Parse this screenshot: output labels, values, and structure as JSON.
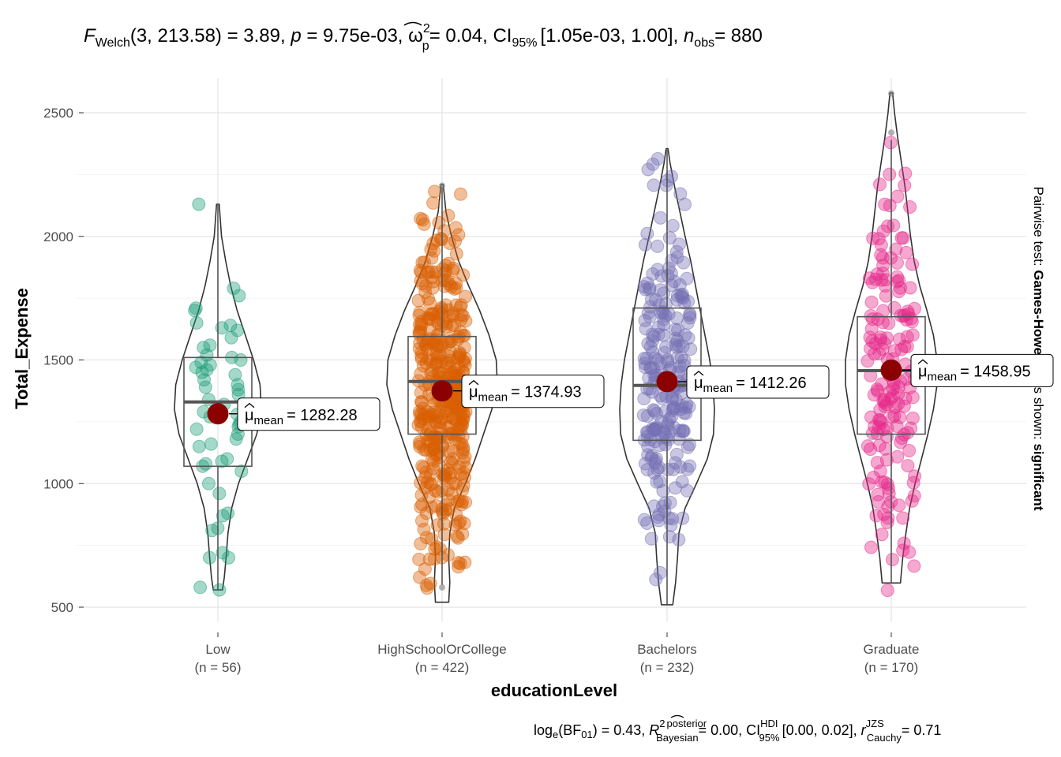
{
  "chart_data": {
    "type": "violin-box-scatter",
    "title": {
      "F_label": "F",
      "F_sub": "Welch",
      "df": "(3, 213.58)",
      "F_value": "= 3.89,",
      "p_label": "p",
      "p_value": "= 9.75e-03,",
      "effect_label": "ω",
      "effect_sup": "2",
      "effect_sub": "p",
      "effect_value": "= 0.04,",
      "ci_label": "CI",
      "ci_sub": "95%",
      "ci_value": "[1.05e-03, 1.00],",
      "n_label": "n",
      "n_sub": "obs",
      "n_value": "= 880"
    },
    "caption": {
      "bf_label": "log",
      "bf_sub": "e",
      "bf_paren": "(BF",
      "bf_paren_sub": "01",
      "bf_value": ") = 0.43,",
      "r2_label": "R",
      "r2_sup": "2",
      "r2_sup2": "posterior",
      "r2_sub": "Bayesian",
      "r2_value": "= 0.00,",
      "ci_label": "CI",
      "ci_sup": "HDI",
      "ci_sub": "95%",
      "ci_value": "[0.00, 0.02],",
      "r_label": "r",
      "r_sup": "JZS",
      "r_sub": "Cauchy",
      "r_value": "= 0.71"
    },
    "side_label": {
      "prefix": "Pairwise test: ",
      "test": "Games-Howell",
      "middle": " Bars shown: ",
      "shown": "significant"
    },
    "xlabel": "educationLevel",
    "ylabel": "Total_Expense",
    "ylim": [
      440,
      2640
    ],
    "yticks": [
      500,
      1000,
      1500,
      2000,
      2500
    ],
    "grid": true,
    "mean_label_prefix": "μ",
    "mean_label_sub": "mean",
    "groups": [
      {
        "name": "Low",
        "n_label": "(n = 56)",
        "n": 56,
        "color": "#1B9E77",
        "mean": 1282.28,
        "mean_text": "= 1282.28",
        "q1": 1070,
        "median": 1330,
        "q3": 1510,
        "whisker_low": 570,
        "whisker_high": 2130,
        "violin": [
          [
            570,
            0.1
          ],
          [
            620,
            0.14
          ],
          [
            700,
            0.18
          ],
          [
            800,
            0.22
          ],
          [
            900,
            0.3
          ],
          [
            1000,
            0.45
          ],
          [
            1100,
            0.65
          ],
          [
            1200,
            0.85
          ],
          [
            1300,
            0.95
          ],
          [
            1400,
            0.92
          ],
          [
            1500,
            0.78
          ],
          [
            1600,
            0.6
          ],
          [
            1700,
            0.42
          ],
          [
            1800,
            0.28
          ],
          [
            1900,
            0.17
          ],
          [
            2000,
            0.08
          ],
          [
            2130,
            0.03
          ]
        ],
        "points": [
          2130,
          1790,
          1760,
          1710,
          1700,
          1650,
          1640,
          1630,
          1620,
          1590,
          1560,
          1550,
          1520,
          1510,
          1500,
          1490,
          1480,
          1470,
          1460,
          1450,
          1440,
          1420,
          1400,
          1390,
          1380,
          1360,
          1340,
          1320,
          1300,
          1290,
          1280,
          1270,
          1250,
          1240,
          1230,
          1220,
          1200,
          1180,
          1160,
          1150,
          1100,
          1090,
          1080,
          1070,
          1050,
          1000,
          960,
          880,
          870,
          820,
          810,
          720,
          700,
          700,
          580,
          570
        ]
      },
      {
        "name": "HighSchoolOrCollege",
        "n_label": "(n = 422)",
        "n": 422,
        "color": "#D95F02",
        "mean": 1374.93,
        "mean_text": "= 1374.93",
        "q1": 1200,
        "median": 1413,
        "q3": 1595,
        "whisker_low": 590,
        "whisker_high": 2200,
        "violin": [
          [
            520,
            0.12
          ],
          [
            600,
            0.14
          ],
          [
            700,
            0.12
          ],
          [
            800,
            0.14
          ],
          [
            900,
            0.22
          ],
          [
            1000,
            0.42
          ],
          [
            1100,
            0.6
          ],
          [
            1200,
            0.75
          ],
          [
            1300,
            0.9
          ],
          [
            1400,
            1.0
          ],
          [
            1500,
            0.98
          ],
          [
            1600,
            0.85
          ],
          [
            1700,
            0.68
          ],
          [
            1800,
            0.48
          ],
          [
            1900,
            0.3
          ],
          [
            2000,
            0.17
          ],
          [
            2100,
            0.07
          ],
          [
            2210,
            0.02
          ]
        ],
        "outliers": [
          580,
          2205
        ]
      },
      {
        "name": "Bachelors",
        "n_label": "(n = 232)",
        "n": 232,
        "color": "#7570B3",
        "mean": 1412.26,
        "mean_text": "= 1412.26",
        "q1": 1175,
        "median": 1397,
        "q3": 1710,
        "whisker_low": 510,
        "whisker_high": 2350,
        "violin": [
          [
            510,
            0.12
          ],
          [
            600,
            0.18
          ],
          [
            700,
            0.22
          ],
          [
            800,
            0.25
          ],
          [
            900,
            0.38
          ],
          [
            1000,
            0.62
          ],
          [
            1100,
            0.85
          ],
          [
            1200,
            0.98
          ],
          [
            1300,
            1.0
          ],
          [
            1400,
            0.97
          ],
          [
            1500,
            0.9
          ],
          [
            1600,
            0.8
          ],
          [
            1700,
            0.7
          ],
          [
            1800,
            0.6
          ],
          [
            1900,
            0.5
          ],
          [
            2000,
            0.38
          ],
          [
            2100,
            0.27
          ],
          [
            2200,
            0.16
          ],
          [
            2300,
            0.06
          ],
          [
            2355,
            0.02
          ]
        ]
      },
      {
        "name": "Graduate",
        "n_label": "(n = 170)",
        "n": 170,
        "color": "#E7298A",
        "mean": 1458.95,
        "mean_text": "= 1458.95",
        "q1": 1200,
        "median": 1457,
        "q3": 1675,
        "whisker_low": 598,
        "whisker_high": 2390,
        "violin": [
          [
            598,
            0.2
          ],
          [
            700,
            0.25
          ],
          [
            800,
            0.32
          ],
          [
            900,
            0.4
          ],
          [
            1000,
            0.52
          ],
          [
            1100,
            0.66
          ],
          [
            1200,
            0.8
          ],
          [
            1300,
            0.92
          ],
          [
            1400,
            1.0
          ],
          [
            1500,
            1.0
          ],
          [
            1600,
            0.92
          ],
          [
            1700,
            0.78
          ],
          [
            1800,
            0.62
          ],
          [
            1900,
            0.5
          ],
          [
            2000,
            0.42
          ],
          [
            2100,
            0.36
          ],
          [
            2200,
            0.3
          ],
          [
            2300,
            0.22
          ],
          [
            2400,
            0.14
          ],
          [
            2500,
            0.07
          ],
          [
            2580,
            0.03
          ]
        ],
        "outliers": [
          2578,
          2420
        ]
      }
    ]
  }
}
